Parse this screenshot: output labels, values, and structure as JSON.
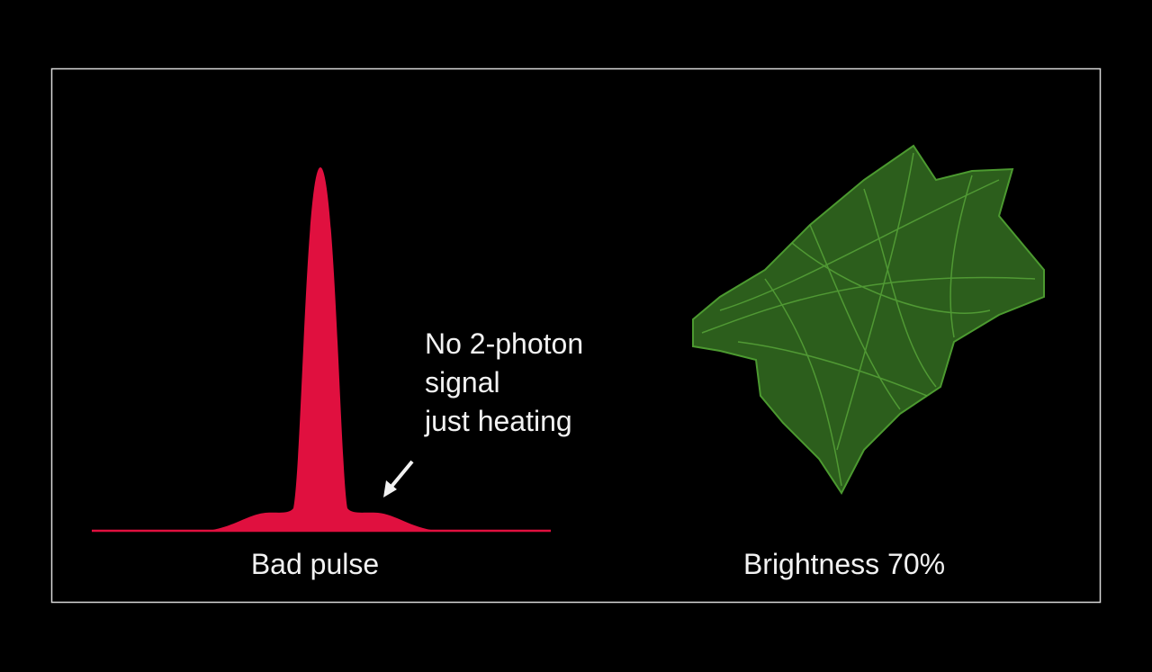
{
  "annotation": {
    "lines": [
      "No 2-photon",
      "signal",
      "just heating"
    ]
  },
  "left_caption": "Bad pulse",
  "right_caption": "Brightness 70%"
}
